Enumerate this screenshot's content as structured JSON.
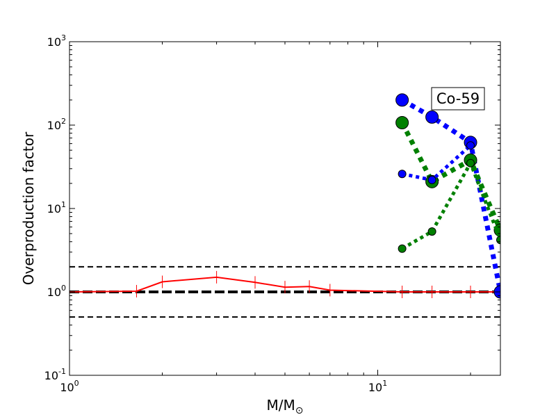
{
  "chart_data": {
    "type": "line",
    "title": "",
    "xlabel": "M/M⊙",
    "ylabel": "Overproduction factor",
    "xscale": "log",
    "yscale": "log",
    "xlim": [
      1,
      25
    ],
    "ylim": [
      0.1,
      1000
    ],
    "grid": false,
    "annotation": "Co-59",
    "annotation_position": "top-right",
    "x_ticks": [
      {
        "value": 1,
        "base": "10",
        "exp": "0"
      },
      {
        "value": 10,
        "base": "10",
        "exp": "1"
      }
    ],
    "y_ticks": [
      {
        "value": 0.1,
        "base": "10",
        "exp": "-1"
      },
      {
        "value": 1,
        "base": "10",
        "exp": "0"
      },
      {
        "value": 10,
        "base": "10",
        "exp": "1"
      },
      {
        "value": 100,
        "base": "10",
        "exp": "2"
      },
      {
        "value": 1000,
        "base": "10",
        "exp": "3"
      }
    ],
    "reference_lines": [
      {
        "y": 0.5,
        "style": "dashed"
      },
      {
        "y": 1,
        "style": "dashed-bold"
      },
      {
        "y": 2,
        "style": "dashed"
      }
    ],
    "series": [
      {
        "color": "#ff0000",
        "style": "solid",
        "marker": "vline",
        "x": [
          1.0,
          1.65,
          2.0,
          3.0,
          4.0,
          5.0,
          6.0,
          7.0,
          12.0,
          15.0,
          20.0,
          25.0
        ],
        "y": [
          1.0,
          1.02,
          1.32,
          1.5,
          1.3,
          1.14,
          1.16,
          1.05,
          1.0,
          1.0,
          1.0,
          1.0
        ]
      },
      {
        "color": "#0000ff",
        "style": "dotted-thick",
        "marker": "large-circle",
        "x": [
          12,
          15,
          20,
          25
        ],
        "y": [
          200,
          125,
          62,
          1.0
        ]
      },
      {
        "color": "#008000",
        "style": "dotted-thick",
        "marker": "large-circle",
        "x": [
          12,
          15,
          20,
          25
        ],
        "y": [
          107,
          21,
          38,
          5.5
        ]
      },
      {
        "color": "#0000ff",
        "style": "dotted",
        "marker": "small-circle",
        "x": [
          12,
          15,
          20
        ],
        "y": [
          26,
          22,
          57
        ]
      },
      {
        "color": "#008000",
        "style": "dotted",
        "marker": "small-circle",
        "x": [
          12,
          15,
          20,
          25
        ],
        "y": [
          3.3,
          5.3,
          35,
          4.2
        ]
      }
    ]
  }
}
